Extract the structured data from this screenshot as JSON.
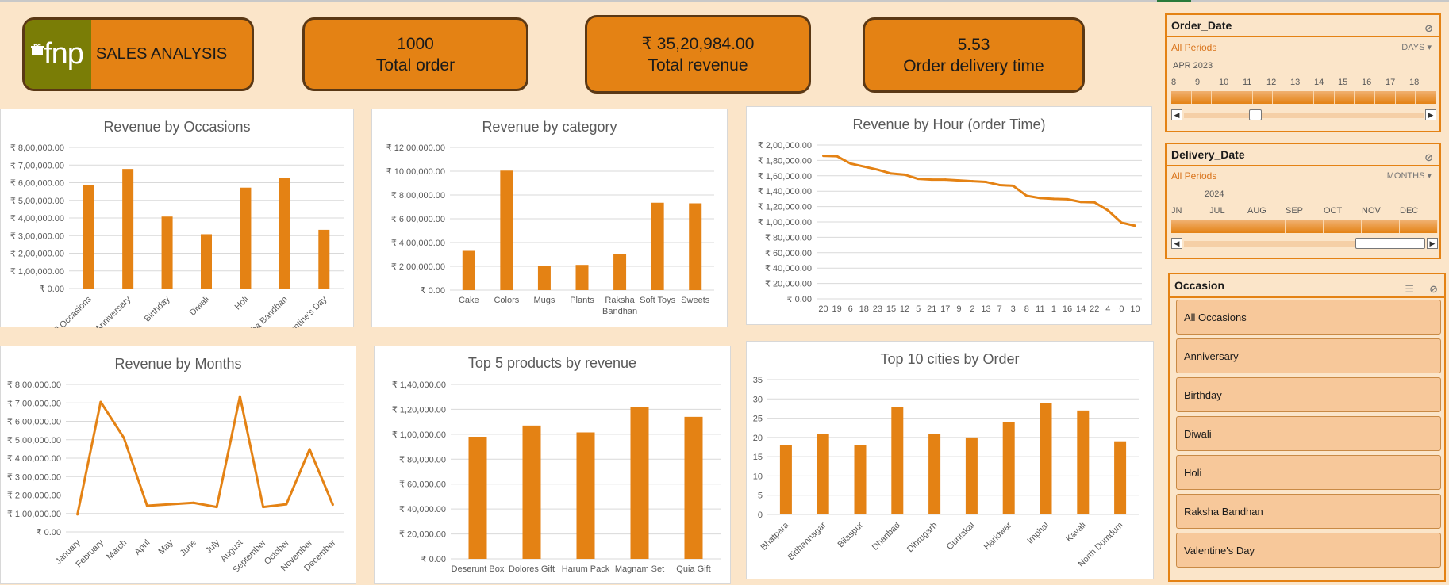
{
  "kpis": {
    "brand_logo": "fnp",
    "brand_title": "SALES ANALYSIS",
    "total_order_value": "1000",
    "total_order_label": "Total order",
    "total_revenue_value": "₹ 35,20,984.00",
    "total_revenue_label": "Total revenue",
    "delivery_time_value": "5.53",
    "delivery_time_label": "Order delivery time"
  },
  "colors": {
    "accent": "#e48214",
    "background": "#fbe5c9",
    "logo_bg": "#7a7d06",
    "card_border": "#5a3815"
  },
  "slicers": {
    "order_date": {
      "title": "Order_Date",
      "period": "All Periods",
      "granularity": "DAYS",
      "month": "APR 2023",
      "ticks": [
        "8",
        "9",
        "10",
        "11",
        "12",
        "13",
        "14",
        "15",
        "16",
        "17",
        "18"
      ],
      "clear_icon": "clear-filter-icon"
    },
    "delivery_date": {
      "title": "Delivery_Date",
      "period": "All Periods",
      "granularity": "MONTHS",
      "year": "2024",
      "ticks": [
        "JN",
        "JUL",
        "AUG",
        "SEP",
        "OCT",
        "NOV",
        "DEC"
      ],
      "clear_icon": "clear-filter-icon"
    },
    "occasion": {
      "title": "Occasion",
      "multiselect_icon": "multi-select-icon",
      "clear_icon": "clear-filter-icon",
      "items": [
        "All Occasions",
        "Anniversary",
        "Birthday",
        "Diwali",
        "Holi",
        "Raksha Bandhan",
        "Valentine's Day"
      ]
    }
  },
  "chart_data": [
    {
      "id": "occasions",
      "type": "bar",
      "title": "Revenue by Occasions",
      "categories": [
        "All Occasions",
        "Anniversary",
        "Birthday",
        "Diwali",
        "Holi",
        "Raksha Bandhan",
        "Valentine's Day"
      ],
      "values": [
        585000,
        678000,
        408000,
        308000,
        572000,
        627000,
        333000
      ],
      "yticks": [
        "₹ 0.00",
        "₹ 1,00,000.00",
        "₹ 2,00,000.00",
        "₹ 3,00,000.00",
        "₹ 4,00,000.00",
        "₹ 5,00,000.00",
        "₹ 6,00,000.00",
        "₹ 7,00,000.00",
        "₹ 8,00,000.00"
      ],
      "ylim": [
        0,
        800000
      ],
      "rotate_labels": true,
      "color": "#e48214"
    },
    {
      "id": "category",
      "type": "bar",
      "title": "Revenue by category",
      "categories": [
        "Cake",
        "Colors",
        "Mugs",
        "Plants",
        "Raksha Bandhan",
        "Soft Toys",
        "Sweets"
      ],
      "values": [
        330000,
        1005000,
        200000,
        212000,
        300000,
        735000,
        730000
      ],
      "yticks": [
        "₹ 0.00",
        "₹ 2,00,000.00",
        "₹ 4,00,000.00",
        "₹ 6,00,000.00",
        "₹ 8,00,000.00",
        "₹ 10,00,000.00",
        "₹ 12,00,000.00"
      ],
      "ylim": [
        0,
        1200000
      ],
      "rotate_labels": false,
      "color": "#e48214"
    },
    {
      "id": "hour",
      "type": "line",
      "title": "Revenue by Hour (order Time)",
      "categories": [
        "20",
        "19",
        "6",
        "18",
        "23",
        "15",
        "12",
        "5",
        "21",
        "17",
        "9",
        "2",
        "13",
        "7",
        "3",
        "8",
        "11",
        "1",
        "16",
        "14",
        "22",
        "4",
        "0",
        "10"
      ],
      "values": [
        186000,
        185500,
        176000,
        172000,
        168000,
        163000,
        161500,
        156000,
        155000,
        155000,
        154000,
        153000,
        152000,
        148000,
        147000,
        134000,
        131000,
        130000,
        129500,
        126000,
        125500,
        115000,
        99000,
        95000
      ],
      "yticks": [
        "₹ 0.00",
        "₹ 20,000.00",
        "₹ 40,000.00",
        "₹ 60,000.00",
        "₹ 80,000.00",
        "₹ 1,00,000.00",
        "₹ 1,20,000.00",
        "₹ 1,40,000.00",
        "₹ 1,60,000.00",
        "₹ 1,80,000.00",
        "₹ 2,00,000.00"
      ],
      "ylim": [
        0,
        200000
      ],
      "rotate_labels": false,
      "color": "#e48214"
    },
    {
      "id": "months",
      "type": "line",
      "title": "Revenue by Months",
      "categories": [
        "January",
        "February",
        "March",
        "April",
        "May",
        "June",
        "July",
        "August",
        "September",
        "October",
        "November",
        "December"
      ],
      "values": [
        95000,
        705000,
        510000,
        142000,
        150000,
        158000,
        135000,
        735000,
        135000,
        150000,
        448000,
        148000
      ],
      "yticks": [
        "₹ 0.00",
        "₹ 1,00,000.00",
        "₹ 2,00,000.00",
        "₹ 3,00,000.00",
        "₹ 4,00,000.00",
        "₹ 5,00,000.00",
        "₹ 6,00,000.00",
        "₹ 7,00,000.00",
        "₹ 8,00,000.00"
      ],
      "ylim": [
        0,
        800000
      ],
      "rotate_labels": true,
      "color": "#e48214"
    },
    {
      "id": "products",
      "type": "bar",
      "title": "Top 5 products by revenue",
      "categories": [
        "Deserunt Box",
        "Dolores Gift",
        "Harum Pack",
        "Magnam Set",
        "Quia Gift"
      ],
      "values": [
        98000,
        107000,
        101500,
        122000,
        114000
      ],
      "yticks": [
        "₹ 0.00",
        "₹ 20,000.00",
        "₹ 40,000.00",
        "₹ 60,000.00",
        "₹ 80,000.00",
        "₹ 1,00,000.00",
        "₹ 1,20,000.00",
        "₹ 1,40,000.00"
      ],
      "ylim": [
        0,
        140000
      ],
      "rotate_labels": false,
      "color": "#e48214"
    },
    {
      "id": "cities",
      "type": "bar",
      "title": "Top 10 cities by Order",
      "categories": [
        "Bhatpara",
        "Bidhannagar",
        "Bilaspur",
        "Dhanbad",
        "Dibrugarh",
        "Guntakal",
        "Haridwar",
        "Imphal",
        "Kavali",
        "North Dumdum"
      ],
      "values": [
        18,
        21,
        18,
        28,
        21,
        20,
        24,
        29,
        27,
        19
      ],
      "yticks": [
        "0",
        "5",
        "10",
        "15",
        "20",
        "25",
        "30",
        "35"
      ],
      "ylim": [
        0,
        35
      ],
      "rotate_labels": true,
      "color": "#e48214"
    }
  ]
}
